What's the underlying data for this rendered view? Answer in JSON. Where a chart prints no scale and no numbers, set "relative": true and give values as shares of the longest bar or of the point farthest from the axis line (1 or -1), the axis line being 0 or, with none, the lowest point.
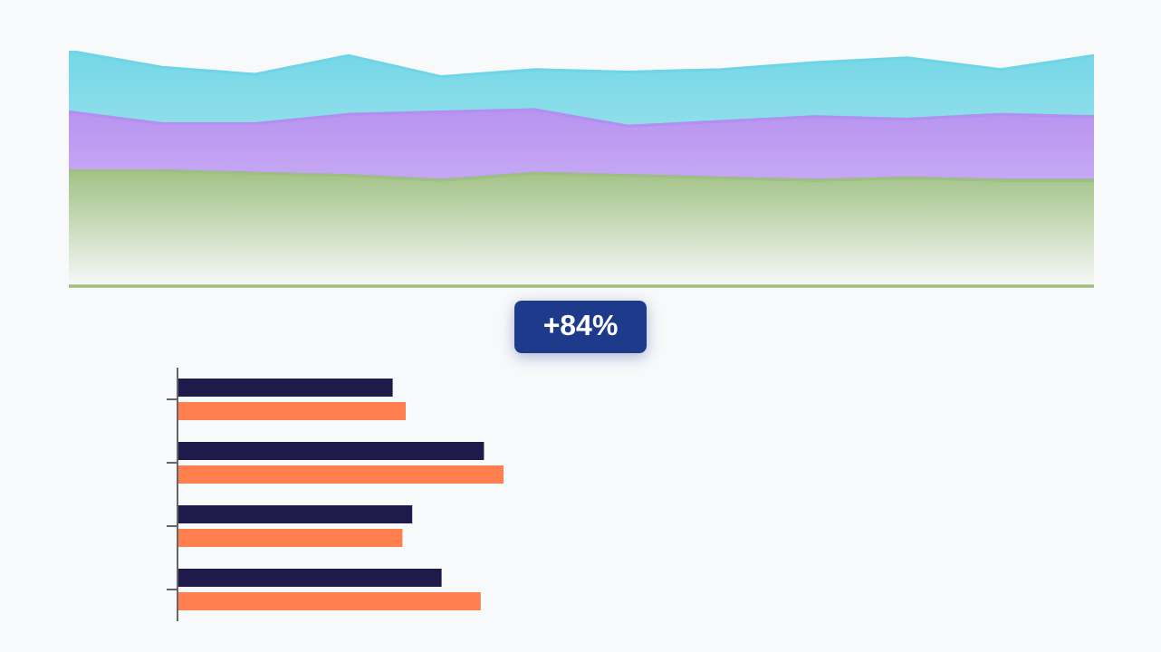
{
  "chart_data": [
    {
      "type": "area",
      "stacked": true,
      "relative": true,
      "categories": [
        null,
        null,
        null,
        null,
        null,
        null,
        null,
        null,
        null,
        null,
        null,
        null
      ],
      "series": [
        {
          "color": "#9dbf80",
          "values": [
            0.49,
            0.49,
            0.48,
            0.47,
            0.45,
            0.48,
            0.47,
            0.46,
            0.45,
            0.46,
            0.45,
            0.45
          ]
        },
        {
          "color": "#b48ef0",
          "values": [
            0.25,
            0.2,
            0.21,
            0.26,
            0.29,
            0.27,
            0.21,
            0.24,
            0.27,
            0.25,
            0.28,
            0.27
          ]
        },
        {
          "color": "#6dd5e5",
          "values": [
            0.26,
            0.24,
            0.21,
            0.25,
            0.15,
            0.17,
            0.23,
            0.22,
            0.23,
            0.26,
            0.19,
            0.26
          ]
        }
      ],
      "annotations": [
        "+84%"
      ]
    },
    {
      "type": "bar",
      "orientation": "horizontal",
      "relative": true,
      "categories": [
        null,
        null,
        null,
        null
      ],
      "series": [
        {
          "color": "#1e1b4b",
          "values": [
            0.66,
            0.94,
            0.72,
            0.81
          ]
        },
        {
          "color": "#ff7f4f",
          "values": [
            0.7,
            1,
            0.69,
            0.93
          ]
        }
      ]
    }
  ]
}
